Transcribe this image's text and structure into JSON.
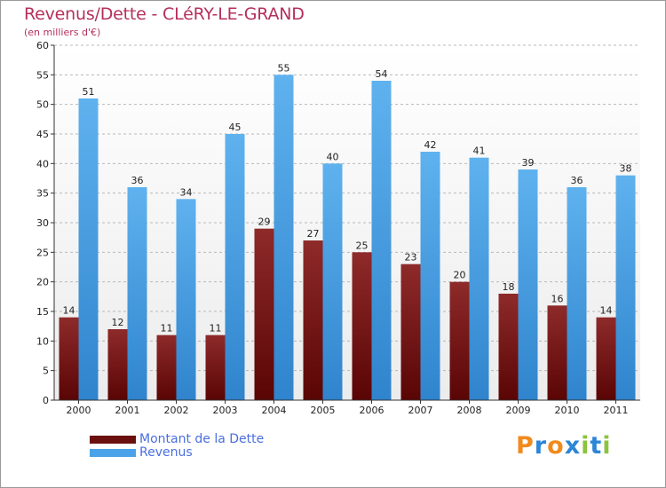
{
  "header": {
    "title": "Revenus/Dette - CLéRY-LE-GRAND",
    "subtitle": "(en milliers d'€)"
  },
  "legend": {
    "items": [
      {
        "label": "Montant de la Dette",
        "color": "#6b0f0f"
      },
      {
        "label": "Revenus",
        "color": "#4aa3e8"
      }
    ]
  },
  "brand": {
    "letters": [
      "P",
      "r",
      "o",
      "x",
      "i",
      "t",
      "i"
    ],
    "colors": [
      "#f08a1c",
      "#2c86d6",
      "#f08a1c",
      "#2c86d6",
      "#8bc43f",
      "#2c86d6",
      "#8bc43f"
    ]
  },
  "chart_data": {
    "type": "bar",
    "title": "Revenus/Dette - CLéRY-LE-GRAND",
    "subtitle": "(en milliers d'€)",
    "xlabel": "",
    "ylabel": "",
    "categories": [
      "2000",
      "2001",
      "2002",
      "2003",
      "2004",
      "2005",
      "2006",
      "2007",
      "2008",
      "2009",
      "2010",
      "2011"
    ],
    "series": [
      {
        "name": "Montant de la Dette",
        "color": "#6b0f0f",
        "values": [
          14,
          12,
          11,
          11,
          29,
          27,
          25,
          23,
          20,
          18,
          16,
          14
        ]
      },
      {
        "name": "Revenus",
        "color": "#4aa3e8",
        "values": [
          51,
          36,
          34,
          45,
          55,
          40,
          54,
          42,
          41,
          39,
          36,
          38
        ]
      }
    ],
    "ylim": [
      0,
      60
    ],
    "yticks": [
      0,
      5,
      10,
      15,
      20,
      25,
      30,
      35,
      40,
      45,
      50,
      55,
      60
    ],
    "grid": "horizontal-dashed",
    "legend_position": "bottom-left"
  }
}
